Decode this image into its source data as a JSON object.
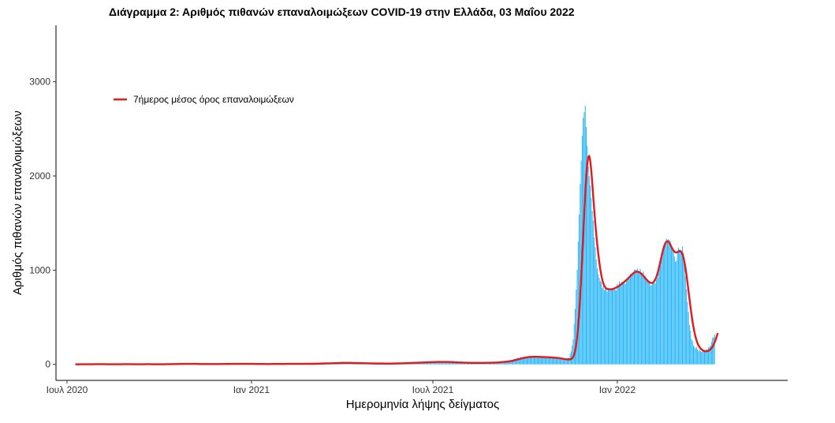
{
  "chart_data": {
    "type": "bar",
    "title": "Διάγραμμα 2: Αριθμός πιθανών επαναλοιμώξεων COVID-19 στην Ελλάδα, 03 Μαΐου 2022",
    "xlabel": "Ημερομηνία λήψης δείγματος",
    "ylabel": "Αριθμός πιθανών επαναλοιμώξεων",
    "x_ticks": [
      {
        "date": "2020-07-01",
        "label": "Ιουλ 2020"
      },
      {
        "date": "2021-01-01",
        "label": "Ιαν 2021"
      },
      {
        "date": "2021-07-01",
        "label": "Ιουλ 2021"
      },
      {
        "date": "2022-01-01",
        "label": "Ιαν 2022"
      }
    ],
    "y_ticks": [
      0,
      1000,
      2000,
      3000
    ],
    "xlim": [
      "2020-06-20",
      "2022-06-20"
    ],
    "ylim": [
      -170,
      3600
    ],
    "grid": false,
    "legend_position": "top-left",
    "series": [
      {
        "name": "",
        "type": "bar",
        "color": "#29B6F6",
        "date_range": [
          "2020-07-10",
          "2022-05-03"
        ],
        "values": [
          2,
          0,
          0,
          1,
          0,
          1,
          2,
          2,
          1,
          3,
          0,
          1,
          1,
          0,
          3,
          0,
          1,
          0,
          1,
          3,
          3,
          3,
          3,
          3,
          2,
          2,
          2,
          2,
          2,
          0,
          1,
          2,
          0,
          3,
          1,
          2,
          1,
          3,
          0,
          2,
          0,
          0,
          0,
          0,
          3,
          1,
          2,
          3,
          1,
          2,
          3,
          2,
          2,
          2,
          1,
          1,
          2,
          2,
          0,
          1,
          3,
          3,
          0,
          1,
          2,
          0,
          3,
          2,
          3,
          3,
          2,
          0,
          2,
          0,
          1,
          3,
          1,
          1,
          0,
          1,
          0,
          1,
          2,
          3,
          1,
          2,
          0,
          0,
          1,
          1,
          4,
          4,
          3,
          2,
          1,
          2,
          3,
          4,
          2,
          4,
          2,
          5,
          5,
          4,
          4,
          5,
          5,
          6,
          6,
          6,
          3,
          5,
          5,
          2,
          5,
          6,
          6,
          7,
          4,
          4,
          3,
          3,
          3,
          4,
          3,
          2,
          2,
          6,
          3,
          5,
          3,
          6,
          3,
          2,
          5,
          2,
          3,
          4,
          3,
          2,
          3,
          4,
          4,
          5,
          2,
          5,
          4,
          3,
          7,
          6,
          5,
          3,
          2,
          6,
          6,
          6,
          2,
          5,
          5,
          6,
          4,
          5,
          6,
          3,
          5,
          5,
          6,
          7,
          6,
          5,
          7,
          7,
          3,
          6,
          5,
          6,
          3,
          7,
          3,
          4,
          3,
          6,
          6,
          5,
          5,
          2,
          4,
          2,
          3,
          3,
          4,
          3,
          5,
          5,
          5,
          4,
          2,
          4,
          4,
          4,
          5,
          3,
          4,
          7,
          5,
          3,
          4,
          7,
          5,
          7,
          4,
          3,
          4,
          5,
          4,
          5,
          7,
          4,
          6,
          4,
          5,
          8,
          7,
          5,
          4,
          5,
          8,
          5,
          8,
          5,
          6,
          7,
          5,
          6,
          6,
          5,
          7,
          6,
          7,
          9,
          8,
          8,
          9,
          10,
          9,
          9,
          12,
          10,
          14,
          11,
          13,
          13,
          9,
          13,
          13,
          11,
          11,
          14,
          15,
          16,
          13,
          18,
          16,
          20,
          15,
          17,
          17,
          17,
          15,
          12,
          17,
          19,
          16,
          15,
          12,
          16,
          11,
          14,
          15,
          16,
          16,
          13,
          11,
          11,
          11,
          14,
          10,
          11,
          11,
          11,
          12,
          13,
          8,
          11,
          7,
          9,
          10,
          9,
          9,
          10,
          7,
          10,
          10,
          6,
          9,
          8,
          8,
          7,
          9,
          8,
          9,
          8,
          10,
          10,
          12,
          11,
          10,
          10,
          9,
          12,
          14,
          13,
          11,
          11,
          14,
          11,
          15,
          13,
          17,
          17,
          16,
          16,
          14,
          16,
          19,
          19,
          21,
          20,
          19,
          17,
          20,
          20,
          22,
          20,
          20,
          25,
          29,
          22,
          22,
          26,
          24,
          24,
          24,
          24,
          25,
          27,
          27,
          24,
          28,
          28,
          29,
          29,
          24,
          25,
          24,
          24,
          28,
          28,
          25,
          22,
          24,
          24,
          24,
          22,
          24,
          20,
          19,
          21,
          20,
          20,
          20,
          19,
          21,
          16,
          15,
          15,
          16,
          19,
          16,
          18,
          16,
          16,
          13,
          19,
          18,
          16,
          15,
          16,
          17,
          17,
          15,
          18,
          18,
          16,
          15,
          17,
          18,
          16,
          19,
          20,
          18,
          17,
          17,
          21,
          21,
          19,
          19,
          23,
          20,
          21,
          20,
          26,
          27,
          24,
          27,
          27,
          29,
          32,
          35,
          33,
          34,
          33,
          37,
          40,
          45,
          48,
          51,
          56,
          62,
          60,
          68,
          70,
          64,
          74,
          77,
          71,
          73,
          81,
          78,
          76,
          80,
          81,
          80,
          82,
          80,
          81,
          76,
          79,
          85,
          81,
          82,
          82,
          79,
          77,
          86,
          73,
          78,
          82,
          71,
          75,
          76,
          73,
          74,
          77,
          68,
          71,
          69,
          70,
          65,
          72,
          64,
          60,
          59,
          57,
          55,
          54,
          48,
          53,
          48,
          51,
          62,
          67,
          72,
          112,
          141,
          202,
          267,
          429,
          589,
          793,
          1004,
          1304,
          1592,
          1917,
          2163,
          2424,
          2617,
          2677,
          2744,
          2520,
          2321,
          2101,
          1999,
          1899,
          1768,
          1629,
          1526,
          1345,
          1244,
          1112,
          1019,
          959,
          918,
          890,
          872,
          811,
          832,
          787,
          808,
          818,
          773,
          798,
          813,
          786,
          792,
          790,
          800,
          813,
          791,
          784,
          854,
          823,
          882,
          850,
          874,
          868,
          864,
          872,
          852,
          896,
          906,
          913,
          929,
          960,
          957,
          956,
          969,
          1005,
          1009,
          1001,
          1019,
          976,
          984,
          1014,
          976,
          968,
          988,
          934,
          936,
          901,
          894,
          878,
          885,
          838,
          840,
          863,
          858,
          906,
          859,
          897,
          918,
          970,
          1036,
          1102,
          1148,
          1196,
          1253,
          1278,
          1271,
          1336,
          1320,
          1328,
          1321,
          1306,
          1245,
          1233,
          1201,
          1144,
          1089,
          1101,
          1190,
          1240,
          1221,
          1201,
          1197,
          1251,
          1183,
          1058,
          933,
          799,
          662,
          559,
          420,
          360,
          271,
          250,
          200,
          187,
          168,
          185,
          160,
          139,
          158,
          140,
          133,
          139,
          149,
          149,
          143,
          164,
          155,
          181,
          185,
          202,
          238,
          282,
          289,
          320
        ]
      },
      {
        "name": "7ήμερος μέσος όρος επαναλοιμώξεων",
        "type": "line",
        "color": "#E3191C",
        "date_range": [
          "2020-07-10",
          "2022-05-03"
        ],
        "values": [
          1,
          0,
          0,
          1,
          0,
          1,
          1,
          1,
          1,
          1,
          1,
          1,
          1,
          1,
          1,
          1,
          1,
          1,
          1,
          2,
          2,
          2,
          2,
          2,
          2,
          2,
          2,
          2,
          2,
          2,
          1,
          1,
          1,
          1,
          1,
          1,
          1,
          1,
          1,
          1,
          1,
          1,
          1,
          1,
          1,
          1,
          1,
          2,
          2,
          2,
          2,
          2,
          2,
          2,
          2,
          2,
          2,
          1,
          1,
          1,
          1,
          1,
          1,
          1,
          1,
          1,
          1,
          1,
          1,
          2,
          2,
          2,
          2,
          2,
          2,
          1,
          1,
          1,
          1,
          1,
          1,
          1,
          1,
          1,
          1,
          1,
          1,
          1,
          1,
          1,
          2,
          2,
          2,
          2,
          2,
          2,
          3,
          3,
          3,
          3,
          3,
          3,
          4,
          4,
          4,
          4,
          4,
          5,
          5,
          5,
          5,
          5,
          5,
          5,
          5,
          5,
          5,
          5,
          5,
          5,
          5,
          4,
          4,
          4,
          4,
          3,
          3,
          3,
          3,
          3,
          3,
          3,
          3,
          3,
          3,
          3,
          3,
          3,
          3,
          3,
          3,
          3,
          3,
          3,
          3,
          4,
          4,
          4,
          4,
          4,
          4,
          4,
          4,
          4,
          4,
          5,
          5,
          5,
          5,
          5,
          5,
          5,
          5,
          5,
          5,
          5,
          5,
          5,
          5,
          5,
          5,
          5,
          5,
          5,
          5,
          5,
          5,
          5,
          5,
          4,
          4,
          4,
          4,
          4,
          4,
          4,
          4,
          4,
          4,
          3,
          3,
          3,
          3,
          3,
          4,
          4,
          4,
          4,
          4,
          4,
          4,
          4,
          4,
          4,
          4,
          4,
          4,
          4,
          4,
          4,
          5,
          5,
          5,
          5,
          5,
          5,
          5,
          5,
          5,
          5,
          5,
          5,
          5,
          5,
          5,
          5,
          5,
          5,
          5,
          5,
          6,
          6,
          6,
          6,
          6,
          6,
          6,
          6,
          6,
          7,
          7,
          7,
          7,
          8,
          8,
          8,
          9,
          9,
          10,
          10,
          10,
          11,
          11,
          11,
          12,
          12,
          12,
          12,
          13,
          13,
          13,
          14,
          14,
          15,
          15,
          16,
          16,
          16,
          16,
          16,
          16,
          16,
          16,
          16,
          16,
          16,
          15,
          15,
          15,
          14,
          14,
          14,
          14,
          14,
          13,
          13,
          13,
          12,
          12,
          12,
          12,
          12,
          11,
          11,
          11,
          11,
          10,
          10,
          10,
          9,
          9,
          9,
          9,
          9,
          9,
          9,
          9,
          8,
          8,
          8,
          8,
          8,
          8,
          8,
          8,
          8,
          9,
          9,
          9,
          10,
          10,
          10,
          10,
          11,
          11,
          11,
          12,
          12,
          12,
          13,
          13,
          14,
          14,
          14,
          15,
          15,
          16,
          16,
          17,
          17,
          17,
          18,
          18,
          19,
          19,
          19,
          20,
          20,
          21,
          21,
          21,
          22,
          22,
          23,
          23,
          24,
          24,
          24,
          25,
          25,
          25,
          26,
          26,
          26,
          26,
          26,
          26,
          26,
          26,
          26,
          26,
          25,
          25,
          25,
          24,
          24,
          23,
          23,
          22,
          22,
          21,
          21,
          20,
          20,
          20,
          19,
          19,
          18,
          18,
          18,
          17,
          17,
          17,
          17,
          16,
          16,
          16,
          16,
          16,
          16,
          16,
          16,
          16,
          16,
          16,
          16,
          16,
          16,
          16,
          17,
          17,
          17,
          17,
          17,
          18,
          18,
          18,
          19,
          19,
          19,
          20,
          20,
          21,
          22,
          23,
          24,
          25,
          26,
          27,
          28,
          29,
          31,
          32,
          34,
          36,
          38,
          40,
          42,
          45,
          48,
          50,
          53,
          56,
          59,
          62,
          64,
          67,
          69,
          71,
          73,
          75,
          77,
          78,
          79,
          80,
          80,
          81,
          81,
          81,
          81,
          80,
          80,
          80,
          79,
          79,
          78,
          78,
          78,
          77,
          77,
          76,
          76,
          75,
          74,
          74,
          73,
          72,
          71,
          70,
          69,
          68,
          67,
          66,
          64,
          63,
          61,
          59,
          58,
          56,
          55,
          53,
          52,
          52,
          53,
          57,
          64,
          79,
          105,
          146,
          207,
          292,
          406,
          548,
          720,
          919,
          1138,
          1367,
          1595,
          1807,
          1987,
          2122,
          2199,
          2213,
          2163,
          2062,
          1929,
          1783,
          1639,
          1505,
          1383,
          1273,
          1176,
          1089,
          1014,
          951,
          900,
          862,
          835,
          817,
          806,
          801,
          798,
          797,
          797,
          797,
          799,
          802,
          806,
          811,
          816,
          822,
          828,
          835,
          843,
          851,
          859,
          868,
          877,
          886,
          895,
          905,
          915,
          926,
          937,
          948,
          958,
          967,
          975,
          981,
          984,
          985,
          983,
          978,
          971,
          962,
          952,
          940,
          927,
          914,
          902,
          890,
          880,
          872,
          866,
          863,
          865,
          872,
          884,
          903,
          929,
          962,
          1001,
          1045,
          1092,
          1140,
          1186,
          1228,
          1262,
          1288,
          1303,
          1307,
          1302,
          1289,
          1270,
          1248,
          1227,
          1209,
          1196,
          1189,
          1188,
          1192,
          1198,
          1203,
          1202,
          1192,
          1171,
          1136,
          1087,
          1024,
          951,
          870,
          784,
          697,
          612,
          532,
          459,
          395,
          340,
          294,
          256,
          226,
          203,
          184,
          170,
          159,
          151,
          145,
          141,
          139,
          139,
          141,
          145,
          151,
          160,
          172,
          188,
          207,
          231,
          258,
          290,
          325
        ]
      }
    ]
  }
}
